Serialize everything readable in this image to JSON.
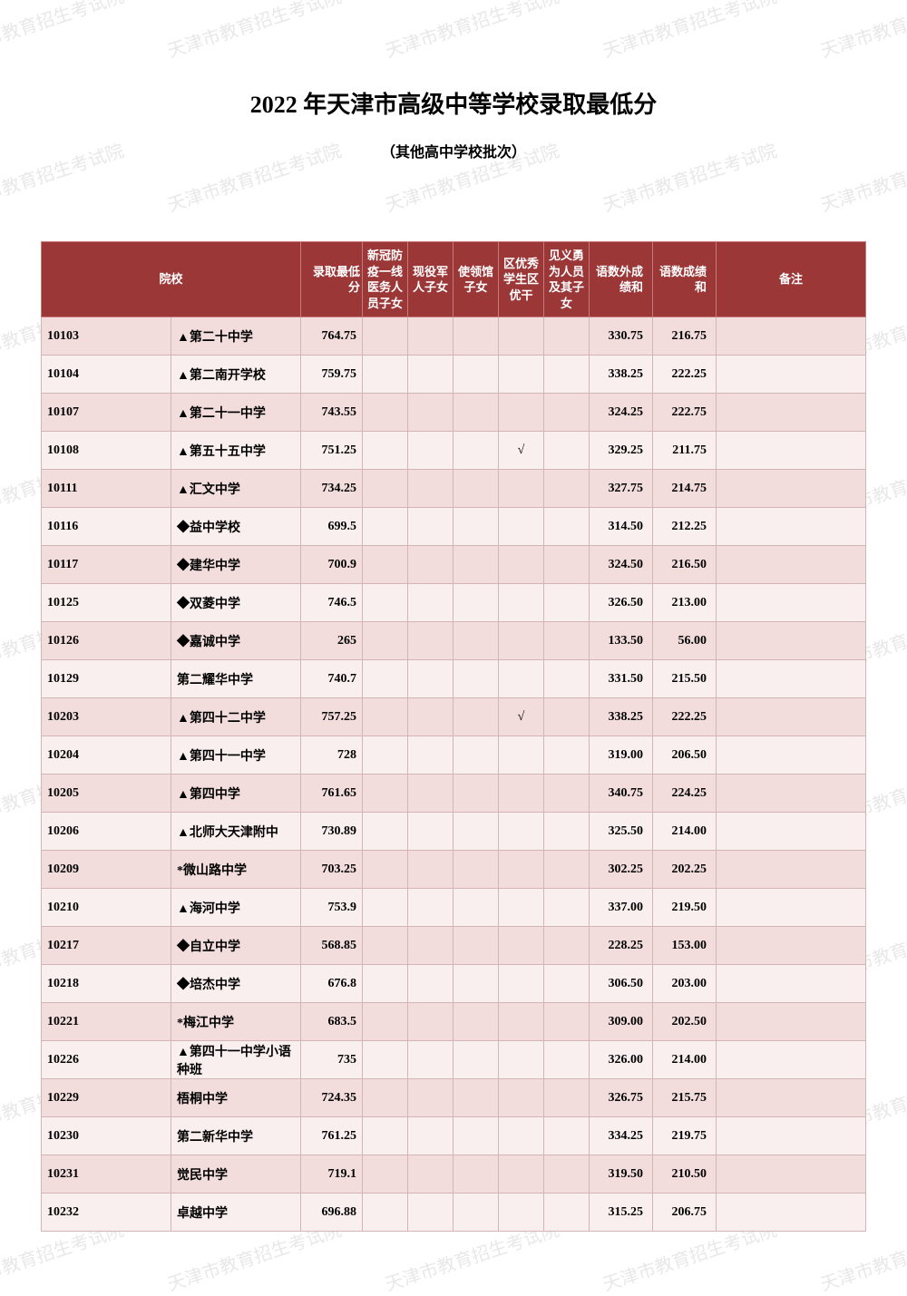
{
  "watermark_text": "天津市教育招生考试院",
  "title": "2022 年天津市高级中等学校录取最低分",
  "subtitle": "（其他高中学校批次）",
  "headers": {
    "school": "院校",
    "min_score": "录取最低分",
    "covid": "新冠防疫一线医务人员子女",
    "military": "现役军人子女",
    "embassy": "使领馆子女",
    "district": "区优秀学生区优干",
    "brave": "见义勇为人员及其子女",
    "sum3": "语数外成绩和",
    "sum2": "语数成绩和",
    "note": "备注"
  },
  "colors": {
    "header_bg": "#9c3738",
    "header_text": "#ffffff",
    "row_odd": "#f2dddc",
    "row_even": "#f9efee",
    "border": "#d4b5b5",
    "header_border": "#c77a7b"
  },
  "rows": [
    {
      "code": "10103",
      "name": "▲第二十中学",
      "score": "764.75",
      "covid": "",
      "mil": "",
      "emb": "",
      "dist": "",
      "brave": "",
      "s3": "330.75",
      "s2": "216.75",
      "note": ""
    },
    {
      "code": "10104",
      "name": "▲第二南开学校",
      "score": "759.75",
      "covid": "",
      "mil": "",
      "emb": "",
      "dist": "",
      "brave": "",
      "s3": "338.25",
      "s2": "222.25",
      "note": ""
    },
    {
      "code": "10107",
      "name": "▲第二十一中学",
      "score": "743.55",
      "covid": "",
      "mil": "",
      "emb": "",
      "dist": "",
      "brave": "",
      "s3": "324.25",
      "s2": "222.75",
      "note": ""
    },
    {
      "code": "10108",
      "name": "▲第五十五中学",
      "score": "751.25",
      "covid": "",
      "mil": "",
      "emb": "",
      "dist": "√",
      "brave": "",
      "s3": "329.25",
      "s2": "211.75",
      "note": ""
    },
    {
      "code": "10111",
      "name": "▲汇文中学",
      "score": "734.25",
      "covid": "",
      "mil": "",
      "emb": "",
      "dist": "",
      "brave": "",
      "s3": "327.75",
      "s2": "214.75",
      "note": ""
    },
    {
      "code": "10116",
      "name": "◆益中学校",
      "score": "699.5",
      "covid": "",
      "mil": "",
      "emb": "",
      "dist": "",
      "brave": "",
      "s3": "314.50",
      "s2": "212.25",
      "note": ""
    },
    {
      "code": "10117",
      "name": "◆建华中学",
      "score": "700.9",
      "covid": "",
      "mil": "",
      "emb": "",
      "dist": "",
      "brave": "",
      "s3": "324.50",
      "s2": "216.50",
      "note": ""
    },
    {
      "code": "10125",
      "name": "◆双菱中学",
      "score": "746.5",
      "covid": "",
      "mil": "",
      "emb": "",
      "dist": "",
      "brave": "",
      "s3": "326.50",
      "s2": "213.00",
      "note": ""
    },
    {
      "code": "10126",
      "name": "◆嘉诚中学",
      "score": "265",
      "covid": "",
      "mil": "",
      "emb": "",
      "dist": "",
      "brave": "",
      "s3": "133.50",
      "s2": "56.00",
      "note": ""
    },
    {
      "code": "10129",
      "name": "第二耀华中学",
      "score": "740.7",
      "covid": "",
      "mil": "",
      "emb": "",
      "dist": "",
      "brave": "",
      "s3": "331.50",
      "s2": "215.50",
      "note": ""
    },
    {
      "code": "10203",
      "name": "▲第四十二中学",
      "score": "757.25",
      "covid": "",
      "mil": "",
      "emb": "",
      "dist": "√",
      "brave": "",
      "s3": "338.25",
      "s2": "222.25",
      "note": ""
    },
    {
      "code": "10204",
      "name": "▲第四十一中学",
      "score": "728",
      "covid": "",
      "mil": "",
      "emb": "",
      "dist": "",
      "brave": "",
      "s3": "319.00",
      "s2": "206.50",
      "note": ""
    },
    {
      "code": "10205",
      "name": "▲第四中学",
      "score": "761.65",
      "covid": "",
      "mil": "",
      "emb": "",
      "dist": "",
      "brave": "",
      "s3": "340.75",
      "s2": "224.25",
      "note": ""
    },
    {
      "code": "10206",
      "name": "▲北师大天津附中",
      "score": "730.89",
      "covid": "",
      "mil": "",
      "emb": "",
      "dist": "",
      "brave": "",
      "s3": "325.50",
      "s2": "214.00",
      "note": ""
    },
    {
      "code": "10209",
      "name": "*微山路中学",
      "score": "703.25",
      "covid": "",
      "mil": "",
      "emb": "",
      "dist": "",
      "brave": "",
      "s3": "302.25",
      "s2": "202.25",
      "note": ""
    },
    {
      "code": "10210",
      "name": "▲海河中学",
      "score": "753.9",
      "covid": "",
      "mil": "",
      "emb": "",
      "dist": "",
      "brave": "",
      "s3": "337.00",
      "s2": "219.50",
      "note": ""
    },
    {
      "code": "10217",
      "name": "◆自立中学",
      "score": "568.85",
      "covid": "",
      "mil": "",
      "emb": "",
      "dist": "",
      "brave": "",
      "s3": "228.25",
      "s2": "153.00",
      "note": ""
    },
    {
      "code": "10218",
      "name": "◆培杰中学",
      "score": "676.8",
      "covid": "",
      "mil": "",
      "emb": "",
      "dist": "",
      "brave": "",
      "s3": "306.50",
      "s2": "203.00",
      "note": ""
    },
    {
      "code": "10221",
      "name": "*梅江中学",
      "score": "683.5",
      "covid": "",
      "mil": "",
      "emb": "",
      "dist": "",
      "brave": "",
      "s3": "309.00",
      "s2": "202.50",
      "note": ""
    },
    {
      "code": "10226",
      "name": "▲第四十一中学小语种班",
      "score": "735",
      "covid": "",
      "mil": "",
      "emb": "",
      "dist": "",
      "brave": "",
      "s3": "326.00",
      "s2": "214.00",
      "note": ""
    },
    {
      "code": "10229",
      "name": "梧桐中学",
      "score": "724.35",
      "covid": "",
      "mil": "",
      "emb": "",
      "dist": "",
      "brave": "",
      "s3": "326.75",
      "s2": "215.75",
      "note": ""
    },
    {
      "code": "10230",
      "name": "第二新华中学",
      "score": "761.25",
      "covid": "",
      "mil": "",
      "emb": "",
      "dist": "",
      "brave": "",
      "s3": "334.25",
      "s2": "219.75",
      "note": ""
    },
    {
      "code": "10231",
      "name": "觉民中学",
      "score": "719.1",
      "covid": "",
      "mil": "",
      "emb": "",
      "dist": "",
      "brave": "",
      "s3": "319.50",
      "s2": "210.50",
      "note": ""
    },
    {
      "code": "10232",
      "name": "卓越中学",
      "score": "696.88",
      "covid": "",
      "mil": "",
      "emb": "",
      "dist": "",
      "brave": "",
      "s3": "315.25",
      "s2": "206.75",
      "note": ""
    }
  ]
}
